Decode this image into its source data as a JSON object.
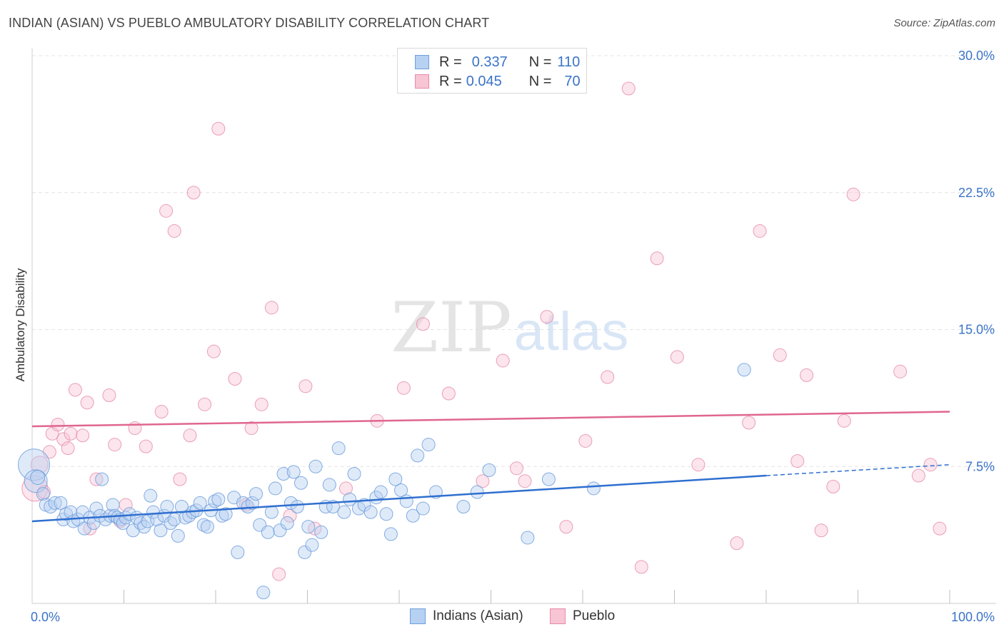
{
  "title": "INDIAN (ASIAN) VS PUEBLO AMBULATORY DISABILITY CORRELATION CHART",
  "source": "Source: ZipAtlas.com",
  "watermark": {
    "zip": "ZIP",
    "atlas": "atlas"
  },
  "legend": {
    "r_label": "R =",
    "n_label": "N =",
    "items": [
      {
        "name": "Indians (Asian)",
        "r": "0.337",
        "n": "110",
        "fill": "#b7d1f2",
        "stroke": "#6f9fdc"
      },
      {
        "name": "Pueblo",
        "r": "0.045",
        "n": "70",
        "fill": "#f8c5d5",
        "stroke": "#e58aa8"
      }
    ]
  },
  "colors": {
    "blue_line": "#2f6fcf",
    "pink_line": "#e0668f",
    "axis_text": "#3a73c8",
    "grid": "#e4e4e4"
  },
  "chart_data": {
    "type": "scatter",
    "title": "INDIAN (ASIAN) VS PUEBLO AMBULATORY DISABILITY CORRELATION CHART",
    "xlabel": "",
    "ylabel": "Ambulatory Disability",
    "xlim": [
      0,
      100
    ],
    "ylim": [
      0,
      30
    ],
    "x_tick_labels": [
      "0.0%",
      "100.0%"
    ],
    "y_ticks": [
      7.5,
      15.0,
      22.5,
      30.0
    ],
    "y_tick_labels": [
      "7.5%",
      "15.0%",
      "22.5%",
      "30.0%"
    ],
    "grid": true,
    "legend_position": "top-center",
    "series": [
      {
        "name": "Indians (Asian)",
        "r": 0.337,
        "n": 110,
        "trend": {
          "x": [
            0,
            80
          ],
          "y": [
            4.5,
            7.0
          ],
          "dashed_to": [
            100,
            7.6
          ]
        },
        "points": [
          [
            0.2,
            7.6,
            22
          ],
          [
            0.4,
            6.7,
            16
          ],
          [
            0.6,
            6.9,
            10
          ],
          [
            1.2,
            6.0,
            9
          ],
          [
            1.5,
            5.4,
            9
          ],
          [
            2.0,
            5.3,
            9
          ],
          [
            2.5,
            5.5,
            9
          ],
          [
            3.1,
            5.5,
            9
          ],
          [
            3.4,
            4.6,
            9
          ],
          [
            3.7,
            4.9,
            9
          ],
          [
            4.2,
            5.0,
            9
          ],
          [
            4.5,
            4.5,
            9
          ],
          [
            5.0,
            4.6,
            9
          ],
          [
            5.5,
            5.0,
            9
          ],
          [
            5.7,
            4.1,
            9
          ],
          [
            6.3,
            4.7,
            9
          ],
          [
            6.7,
            4.4,
            9
          ],
          [
            7.0,
            5.2,
            9
          ],
          [
            7.4,
            4.8,
            9
          ],
          [
            7.6,
            6.8,
            9
          ],
          [
            8.0,
            4.6,
            9
          ],
          [
            8.5,
            4.8,
            9
          ],
          [
            8.8,
            5.4,
            9
          ],
          [
            9.0,
            4.8,
            9
          ],
          [
            9.3,
            4.7,
            9
          ],
          [
            9.6,
            4.6,
            9
          ],
          [
            9.9,
            4.4,
            9
          ],
          [
            10.2,
            4.7,
            9
          ],
          [
            10.6,
            4.9,
            9
          ],
          [
            11.0,
            4.0,
            9
          ],
          [
            11.4,
            4.7,
            9
          ],
          [
            11.8,
            4.4,
            9
          ],
          [
            12.2,
            4.2,
            9
          ],
          [
            12.6,
            4.5,
            9
          ],
          [
            12.9,
            5.9,
            9
          ],
          [
            13.2,
            5.0,
            9
          ],
          [
            13.6,
            4.6,
            9
          ],
          [
            14.0,
            4.0,
            9
          ],
          [
            14.4,
            4.8,
            9
          ],
          [
            14.7,
            5.3,
            9
          ],
          [
            15.1,
            4.4,
            9
          ],
          [
            15.5,
            4.6,
            9
          ],
          [
            15.9,
            3.7,
            9
          ],
          [
            16.3,
            5.3,
            9
          ],
          [
            16.7,
            4.7,
            9
          ],
          [
            17.1,
            4.8,
            9
          ],
          [
            17.5,
            5.0,
            9
          ],
          [
            17.9,
            5.1,
            9
          ],
          [
            18.3,
            5.5,
            9
          ],
          [
            18.7,
            4.3,
            9
          ],
          [
            19.1,
            4.2,
            9
          ],
          [
            19.5,
            5.1,
            9
          ],
          [
            19.9,
            5.6,
            9
          ],
          [
            20.3,
            5.7,
            9
          ],
          [
            20.7,
            4.8,
            9
          ],
          [
            21.1,
            4.9,
            9
          ],
          [
            22.0,
            5.8,
            9
          ],
          [
            22.4,
            2.8,
            9
          ],
          [
            23.0,
            5.5,
            9
          ],
          [
            23.5,
            5.3,
            9
          ],
          [
            24.0,
            5.5,
            9
          ],
          [
            24.4,
            6.0,
            9
          ],
          [
            24.8,
            4.3,
            9
          ],
          [
            25.2,
            0.6,
            9
          ],
          [
            25.7,
            3.9,
            9
          ],
          [
            26.1,
            5.0,
            9
          ],
          [
            26.5,
            6.3,
            9
          ],
          [
            27.0,
            4.0,
            9
          ],
          [
            27.4,
            7.1,
            9
          ],
          [
            27.8,
            4.4,
            9
          ],
          [
            28.2,
            5.5,
            9
          ],
          [
            28.5,
            7.2,
            9
          ],
          [
            28.9,
            5.3,
            9
          ],
          [
            29.3,
            6.6,
            9
          ],
          [
            29.7,
            2.8,
            9
          ],
          [
            30.1,
            4.2,
            9
          ],
          [
            30.5,
            3.2,
            9
          ],
          [
            30.9,
            7.5,
            9
          ],
          [
            31.5,
            3.9,
            9
          ],
          [
            32.0,
            5.3,
            9
          ],
          [
            32.4,
            6.5,
            9
          ],
          [
            32.8,
            5.3,
            9
          ],
          [
            33.4,
            8.5,
            9
          ],
          [
            34.0,
            5.0,
            9
          ],
          [
            34.6,
            5.7,
            9
          ],
          [
            35.1,
            7.1,
            9
          ],
          [
            35.6,
            5.2,
            9
          ],
          [
            36.2,
            5.4,
            9
          ],
          [
            36.9,
            5.0,
            9
          ],
          [
            37.5,
            5.8,
            9
          ],
          [
            38.0,
            6.1,
            9
          ],
          [
            38.6,
            4.9,
            9
          ],
          [
            39.1,
            3.8,
            9
          ],
          [
            39.6,
            6.8,
            9
          ],
          [
            40.2,
            6.2,
            9
          ],
          [
            40.8,
            5.6,
            9
          ],
          [
            41.5,
            4.8,
            9
          ],
          [
            42.0,
            8.1,
            9
          ],
          [
            42.6,
            5.2,
            9
          ],
          [
            43.2,
            8.7,
            9
          ],
          [
            44.0,
            6.1,
            9
          ],
          [
            47.0,
            5.3,
            9
          ],
          [
            48.5,
            6.1,
            9
          ],
          [
            49.8,
            7.3,
            9
          ],
          [
            54.0,
            3.6,
            9
          ],
          [
            56.3,
            6.8,
            9
          ],
          [
            61.2,
            6.3,
            9
          ],
          [
            77.6,
            12.8,
            9
          ]
        ]
      },
      {
        "name": "Pueblo",
        "r": 0.045,
        "n": 70,
        "trend": {
          "x": [
            0,
            100
          ],
          "y": [
            9.7,
            10.5
          ]
        },
        "points": [
          [
            0.3,
            6.3,
            18
          ],
          [
            0.8,
            7.6,
            12
          ],
          [
            1.3,
            6.1,
            9
          ],
          [
            1.9,
            8.3,
            9
          ],
          [
            2.2,
            9.3,
            9
          ],
          [
            2.8,
            9.8,
            9
          ],
          [
            3.4,
            9.0,
            9
          ],
          [
            3.9,
            8.5,
            9
          ],
          [
            4.2,
            9.3,
            9
          ],
          [
            4.7,
            11.7,
            9
          ],
          [
            5.5,
            9.2,
            9
          ],
          [
            6.0,
            11.0,
            9
          ],
          [
            6.3,
            4.1,
            9
          ],
          [
            7.0,
            6.8,
            9
          ],
          [
            8.4,
            11.4,
            9
          ],
          [
            9.0,
            8.7,
            9
          ],
          [
            9.6,
            4.5,
            9
          ],
          [
            10.2,
            5.4,
            9
          ],
          [
            11.2,
            9.6,
            9
          ],
          [
            12.4,
            8.6,
            9
          ],
          [
            14.1,
            10.5,
            9
          ],
          [
            14.6,
            21.5,
            9
          ],
          [
            15.5,
            20.4,
            9
          ],
          [
            16.1,
            6.8,
            9
          ],
          [
            17.2,
            9.2,
            9
          ],
          [
            17.6,
            22.5,
            9
          ],
          [
            18.8,
            10.9,
            9
          ],
          [
            19.8,
            13.8,
            9
          ],
          [
            20.3,
            26.0,
            9
          ],
          [
            22.1,
            12.3,
            9
          ],
          [
            23.3,
            5.4,
            9
          ],
          [
            23.9,
            9.6,
            9
          ],
          [
            25.0,
            10.9,
            9
          ],
          [
            26.1,
            16.2,
            9
          ],
          [
            26.9,
            1.6,
            9
          ],
          [
            28.1,
            4.8,
            9
          ],
          [
            29.8,
            11.9,
            9
          ],
          [
            30.8,
            4.1,
            9
          ],
          [
            34.2,
            6.3,
            9
          ],
          [
            37.6,
            10.0,
            9
          ],
          [
            40.5,
            11.8,
            9
          ],
          [
            42.6,
            15.3,
            9
          ],
          [
            45.4,
            11.5,
            9
          ],
          [
            49.1,
            6.7,
            9
          ],
          [
            51.3,
            13.3,
            9
          ],
          [
            52.8,
            7.4,
            9
          ],
          [
            53.7,
            6.7,
            9
          ],
          [
            56.1,
            15.7,
            9
          ],
          [
            58.2,
            4.2,
            9
          ],
          [
            60.3,
            8.9,
            9
          ],
          [
            62.7,
            12.4,
            9
          ],
          [
            65.0,
            28.2,
            9
          ],
          [
            66.4,
            2.0,
            9
          ],
          [
            68.1,
            18.9,
            9
          ],
          [
            70.3,
            13.5,
            9
          ],
          [
            72.6,
            7.6,
            9
          ],
          [
            76.8,
            3.3,
            9
          ],
          [
            78.1,
            9.9,
            9
          ],
          [
            79.3,
            20.4,
            9
          ],
          [
            81.5,
            13.6,
            9
          ],
          [
            83.4,
            7.8,
            9
          ],
          [
            84.4,
            12.5,
            9
          ],
          [
            86.0,
            4.0,
            9
          ],
          [
            87.3,
            6.4,
            9
          ],
          [
            88.5,
            10.0,
            9
          ],
          [
            89.5,
            22.4,
            9
          ],
          [
            94.6,
            12.7,
            9
          ],
          [
            96.6,
            7.0,
            9
          ],
          [
            97.9,
            7.6,
            9
          ],
          [
            98.9,
            4.1,
            9
          ]
        ]
      }
    ]
  }
}
